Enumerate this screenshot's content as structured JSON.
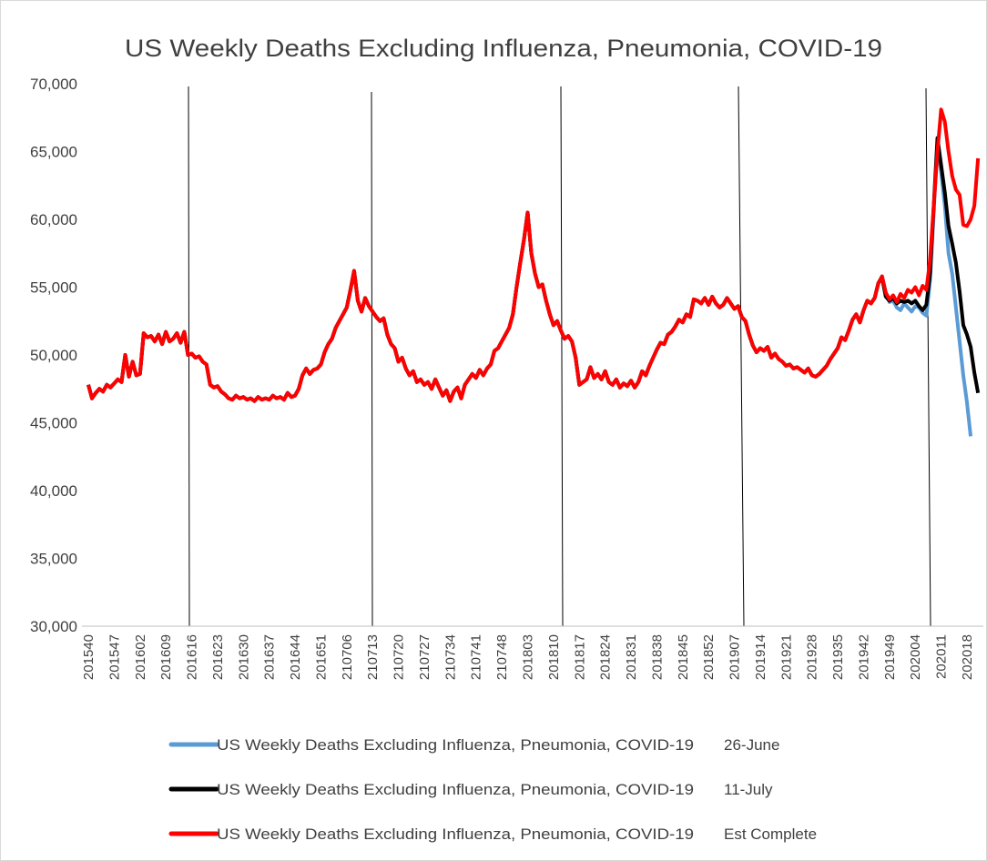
{
  "chart_data": {
    "type": "line",
    "title": "US Weekly Deaths Excluding Influenza, Pneumonia, COVID-19",
    "categories": [
      "201540",
      null,
      null,
      null,
      null,
      null,
      null,
      "201547",
      null,
      null,
      null,
      null,
      null,
      null,
      "201602",
      null,
      null,
      null,
      null,
      null,
      null,
      "201609",
      null,
      null,
      null,
      null,
      null,
      null,
      "201616",
      null,
      null,
      null,
      null,
      null,
      null,
      "201623",
      null,
      null,
      null,
      null,
      null,
      null,
      "201630",
      null,
      null,
      null,
      null,
      null,
      null,
      "201637",
      null,
      null,
      null,
      null,
      null,
      null,
      "201644",
      null,
      null,
      null,
      null,
      null,
      null,
      "201651",
      null,
      null,
      null,
      null,
      null,
      null,
      "210706",
      null,
      null,
      null,
      null,
      null,
      null,
      "210713",
      null,
      null,
      null,
      null,
      null,
      null,
      "210720",
      null,
      null,
      null,
      null,
      null,
      null,
      "210727",
      null,
      null,
      null,
      null,
      null,
      null,
      "210734",
      null,
      null,
      null,
      null,
      null,
      null,
      "210741",
      null,
      null,
      null,
      null,
      null,
      null,
      "210748",
      null,
      null,
      null,
      null,
      null,
      null,
      "201803",
      null,
      null,
      null,
      null,
      null,
      null,
      "201810",
      null,
      null,
      null,
      null,
      null,
      null,
      "201817",
      null,
      null,
      null,
      null,
      null,
      null,
      "201824",
      null,
      null,
      null,
      null,
      null,
      null,
      "201831",
      null,
      null,
      null,
      null,
      null,
      null,
      "201838",
      null,
      null,
      null,
      null,
      null,
      null,
      "201845",
      null,
      null,
      null,
      null,
      null,
      null,
      "201852",
      null,
      null,
      null,
      null,
      null,
      null,
      "201907",
      null,
      null,
      null,
      null,
      null,
      null,
      "201914",
      null,
      null,
      null,
      null,
      null,
      null,
      "201921",
      null,
      null,
      null,
      null,
      null,
      null,
      "201928",
      null,
      null,
      null,
      null,
      null,
      null,
      "201935",
      null,
      null,
      null,
      null,
      null,
      null,
      "201942",
      null,
      null,
      null,
      null,
      null,
      null,
      "201949",
      null,
      null,
      null,
      null,
      null,
      null,
      "202004",
      null,
      null,
      null,
      null,
      null,
      null,
      "202011",
      null,
      null,
      null,
      null,
      null,
      null,
      "202018",
      null,
      null,
      null
    ],
    "series": [
      {
        "name": "US Weekly Deaths Excluding Influenza, Pneumonia, COVID-19",
        "tag": "26-June",
        "color": "#5b9bd5",
        "values": [
          47800,
          46800,
          47200,
          47500,
          47300,
          47800,
          47600,
          47900,
          48200,
          48000,
          50000,
          48400,
          49500,
          48500,
          48600,
          51600,
          51300,
          51400,
          51000,
          51500,
          50800,
          51700,
          51000,
          51200,
          51600,
          50900,
          51700,
          50000,
          50100,
          49800,
          49900,
          49500,
          49300,
          47800,
          47600,
          47700,
          47300,
          47100,
          46800,
          46700,
          47000,
          46800,
          46900,
          46700,
          46800,
          46600,
          46900,
          46700,
          46800,
          46700,
          47000,
          46800,
          46900,
          46700,
          47200,
          46900,
          47000,
          47500,
          48500,
          49000,
          48600,
          48900,
          49000,
          49300,
          50200,
          50800,
          51200,
          52000,
          52500,
          53000,
          53500,
          54800,
          56200,
          54000,
          53200,
          54200,
          53600,
          53200,
          52800,
          52500,
          52700,
          51500,
          50800,
          50500,
          49500,
          49800,
          49000,
          48500,
          48800,
          48000,
          48200,
          47800,
          48000,
          47500,
          48200,
          47600,
          47000,
          47400,
          46600,
          47300,
          47600,
          46800,
          47800,
          48200,
          48600,
          48300,
          48900,
          48500,
          49000,
          49300,
          50300,
          50500,
          51000,
          51500,
          52000,
          53000,
          55000,
          56800,
          58500,
          60500,
          57500,
          56000,
          55000,
          55200,
          54000,
          53000,
          52200,
          52500,
          51800,
          51200,
          51400,
          51000,
          49800,
          47800,
          48000,
          48200,
          49100,
          48300,
          48600,
          48200,
          48800,
          48000,
          47800,
          48200,
          47600,
          47900,
          47700,
          48100,
          47600,
          48000,
          48800,
          48500,
          49200,
          49800,
          50400,
          50900,
          50800,
          51500,
          51700,
          52100,
          52600,
          52400,
          53000,
          52800,
          54100,
          54000,
          53800,
          54200,
          53700,
          54300,
          53800,
          53500,
          53700,
          54200,
          53800,
          53400,
          53600,
          52800,
          52500,
          51500,
          50700,
          50200,
          50500,
          50300,
          50600,
          49800,
          50100,
          49700,
          49500,
          49200,
          49300,
          49000,
          49100,
          48900,
          48700,
          49000,
          48500,
          48400,
          48600,
          48900,
          49200,
          49700,
          50100,
          50500,
          51300,
          51100,
          51800,
          52600,
          53000,
          52400,
          53300,
          54000,
          53800,
          54200,
          55300,
          55800,
          54600,
          53900,
          54000,
          53500,
          53300,
          53800,
          53500,
          53200,
          53600,
          53500,
          53100,
          52900,
          55500,
          60500,
          65500,
          63500,
          61000,
          57500,
          56000,
          53500,
          51000,
          48500,
          46500,
          44000,
          null,
          null
        ]
      },
      {
        "name": "US Weekly Deaths Excluding Influenza, Pneumonia, COVID-19",
        "tag": "11-July",
        "color": "#000000",
        "values": [
          47800,
          46800,
          47200,
          47500,
          47300,
          47800,
          47600,
          47900,
          48200,
          48000,
          50000,
          48400,
          49500,
          48500,
          48600,
          51600,
          51300,
          51400,
          51000,
          51500,
          50800,
          51700,
          51000,
          51200,
          51600,
          50900,
          51700,
          50000,
          50100,
          49800,
          49900,
          49500,
          49300,
          47800,
          47600,
          47700,
          47300,
          47100,
          46800,
          46700,
          47000,
          46800,
          46900,
          46700,
          46800,
          46600,
          46900,
          46700,
          46800,
          46700,
          47000,
          46800,
          46900,
          46700,
          47200,
          46900,
          47000,
          47500,
          48500,
          49000,
          48600,
          48900,
          49000,
          49300,
          50200,
          50800,
          51200,
          52000,
          52500,
          53000,
          53500,
          54800,
          56200,
          54000,
          53200,
          54200,
          53600,
          53200,
          52800,
          52500,
          52700,
          51500,
          50800,
          50500,
          49500,
          49800,
          49000,
          48500,
          48800,
          48000,
          48200,
          47800,
          48000,
          47500,
          48200,
          47600,
          47000,
          47400,
          46600,
          47300,
          47600,
          46800,
          47800,
          48200,
          48600,
          48300,
          48900,
          48500,
          49000,
          49300,
          50300,
          50500,
          51000,
          51500,
          52000,
          53000,
          55000,
          56800,
          58500,
          60500,
          57500,
          56000,
          55000,
          55200,
          54000,
          53000,
          52200,
          52500,
          51800,
          51200,
          51400,
          51000,
          49800,
          47800,
          48000,
          48200,
          49100,
          48300,
          48600,
          48200,
          48800,
          48000,
          47800,
          48200,
          47600,
          47900,
          47700,
          48100,
          47600,
          48000,
          48800,
          48500,
          49200,
          49800,
          50400,
          50900,
          50800,
          51500,
          51700,
          52100,
          52600,
          52400,
          53000,
          52800,
          54100,
          54000,
          53800,
          54200,
          53700,
          54300,
          53800,
          53500,
          53700,
          54200,
          53800,
          53400,
          53600,
          52800,
          52500,
          51500,
          50700,
          50200,
          50500,
          50300,
          50600,
          49800,
          50100,
          49700,
          49500,
          49200,
          49300,
          49000,
          49100,
          48900,
          48700,
          49000,
          48500,
          48400,
          48600,
          48900,
          49200,
          49700,
          50100,
          50500,
          51300,
          51100,
          51800,
          52600,
          53000,
          52400,
          53300,
          54000,
          53800,
          54200,
          55300,
          55700,
          54300,
          54000,
          54200,
          53800,
          54000,
          53900,
          54000,
          53800,
          54000,
          53600,
          53300,
          53700,
          56000,
          61000,
          66000,
          64000,
          62000,
          59500,
          58200,
          56800,
          54700,
          52200,
          51500,
          50600,
          48700,
          47200
        ]
      },
      {
        "name": "US Weekly Deaths Excluding Influenza, Pneumonia, COVID-19",
        "tag": "Est Complete",
        "color": "#ff0000",
        "values": [
          47800,
          46800,
          47200,
          47500,
          47300,
          47800,
          47600,
          47900,
          48200,
          48000,
          50000,
          48400,
          49500,
          48500,
          48600,
          51600,
          51300,
          51400,
          51000,
          51500,
          50800,
          51700,
          51000,
          51200,
          51600,
          50900,
          51700,
          50000,
          50100,
          49800,
          49900,
          49500,
          49300,
          47800,
          47600,
          47700,
          47300,
          47100,
          46800,
          46700,
          47000,
          46800,
          46900,
          46700,
          46800,
          46600,
          46900,
          46700,
          46800,
          46700,
          47000,
          46800,
          46900,
          46700,
          47200,
          46900,
          47000,
          47500,
          48500,
          49000,
          48600,
          48900,
          49000,
          49300,
          50200,
          50800,
          51200,
          52000,
          52500,
          53000,
          53500,
          54800,
          56200,
          54000,
          53200,
          54200,
          53600,
          53200,
          52800,
          52500,
          52700,
          51500,
          50800,
          50500,
          49500,
          49800,
          49000,
          48500,
          48800,
          48000,
          48200,
          47800,
          48000,
          47500,
          48200,
          47600,
          47000,
          47400,
          46600,
          47300,
          47600,
          46800,
          47800,
          48200,
          48600,
          48300,
          48900,
          48500,
          49000,
          49300,
          50300,
          50500,
          51000,
          51500,
          52000,
          53000,
          55000,
          56800,
          58500,
          60500,
          57500,
          56000,
          55000,
          55200,
          54000,
          53000,
          52200,
          52500,
          51800,
          51200,
          51400,
          51000,
          49800,
          47800,
          48000,
          48200,
          49100,
          48300,
          48600,
          48200,
          48800,
          48000,
          47800,
          48200,
          47600,
          47900,
          47700,
          48100,
          47600,
          48000,
          48800,
          48500,
          49200,
          49800,
          50400,
          50900,
          50800,
          51500,
          51700,
          52100,
          52600,
          52400,
          53000,
          52800,
          54100,
          54000,
          53800,
          54200,
          53700,
          54300,
          53800,
          53500,
          53700,
          54200,
          53800,
          53400,
          53600,
          52800,
          52500,
          51500,
          50700,
          50200,
          50500,
          50300,
          50600,
          49800,
          50100,
          49700,
          49500,
          49200,
          49300,
          49000,
          49100,
          48900,
          48700,
          49000,
          48500,
          48400,
          48600,
          48900,
          49200,
          49700,
          50100,
          50500,
          51300,
          51100,
          51800,
          52600,
          53000,
          52400,
          53300,
          54000,
          53800,
          54200,
          55300,
          55800,
          54600,
          54100,
          54400,
          53900,
          54500,
          54200,
          54800,
          54600,
          55000,
          54400,
          55100,
          54800,
          57000,
          61000,
          65000,
          68100,
          67200,
          65000,
          63200,
          62200,
          61800,
          59600,
          59500,
          60000,
          61000,
          64500
        ]
      }
    ],
    "ylim": [
      30000,
      70000
    ],
    "yticks": [
      {
        "value": 30000,
        "label": "30,000"
      },
      {
        "value": 35000,
        "label": "35,000"
      },
      {
        "value": 40000,
        "label": "40,000"
      },
      {
        "value": 45000,
        "label": "45,000"
      },
      {
        "value": 50000,
        "label": "50,000"
      },
      {
        "value": 55000,
        "label": "55,000"
      },
      {
        "value": 60000,
        "label": "60,000"
      },
      {
        "value": 65000,
        "label": "65,000"
      },
      {
        "value": 70000,
        "label": "70,000"
      }
    ],
    "grid": false
  }
}
